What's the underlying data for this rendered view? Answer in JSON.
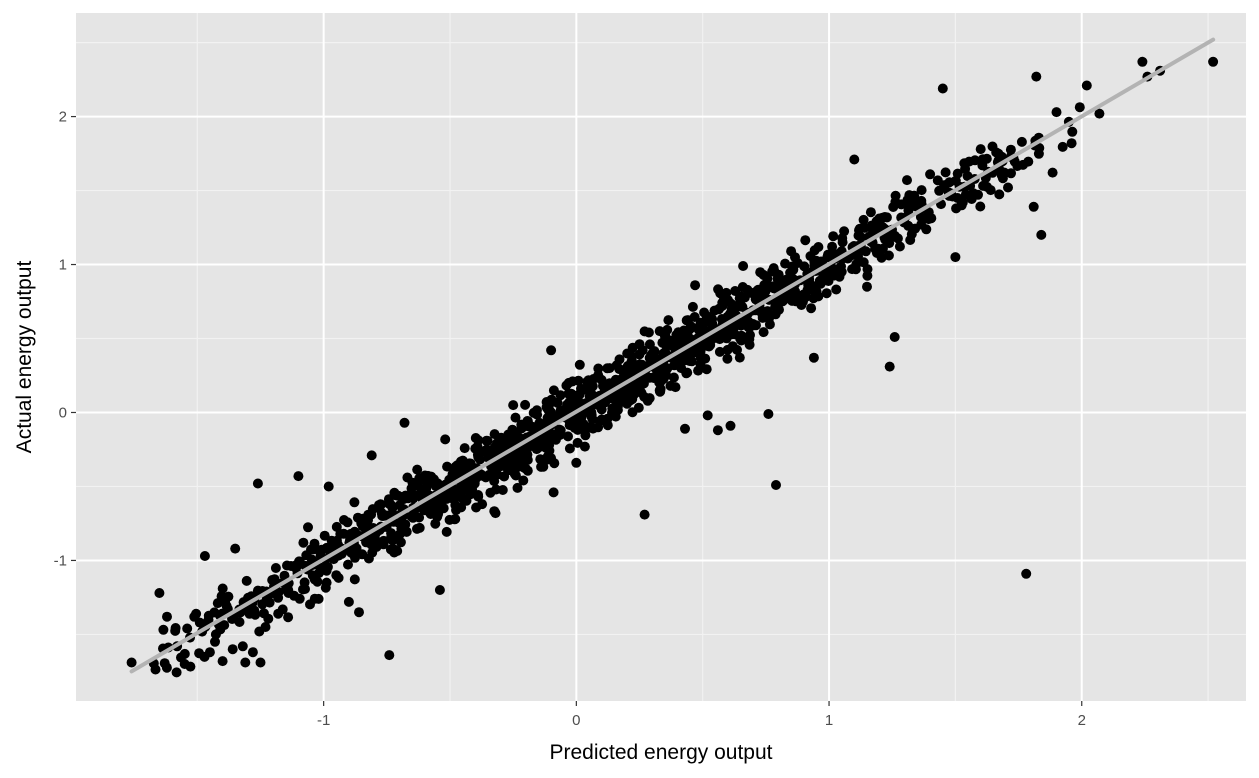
{
  "chart_data": {
    "type": "scatter",
    "title": "",
    "xlabel": "Predicted energy output",
    "ylabel": "Actual energy output",
    "xlim": [
      -1.98,
      2.65
    ],
    "ylim": [
      -1.95,
      2.7
    ],
    "x_ticks": [
      -1,
      0,
      1,
      2
    ],
    "y_ticks": [
      -1,
      0,
      1,
      2
    ],
    "grid": true,
    "legend": "none",
    "colors": {
      "panel_background": "#e5e5e5",
      "grid_major": "#ffffff",
      "grid_minor": "#f2f2f2",
      "points": "#000000",
      "fit_line": "#b3b3b3"
    },
    "fit_line": {
      "x": [
        -1.76,
        2.52
      ],
      "y": [
        -1.75,
        2.52
      ]
    },
    "series": [
      {
        "points": [
          [
            -1.76,
            -1.69
          ],
          [
            -1.65,
            -1.22
          ],
          [
            -1.62,
            -1.38
          ],
          [
            -1.58,
            -1.58
          ],
          [
            -1.55,
            -1.7
          ],
          [
            -1.54,
            -1.46
          ],
          [
            -1.49,
            -1.42
          ],
          [
            -1.47,
            -0.97
          ],
          [
            -1.45,
            -1.62
          ],
          [
            -1.43,
            -1.55
          ],
          [
            -1.4,
            -1.68
          ],
          [
            -1.39,
            -1.28
          ],
          [
            -1.36,
            -1.6
          ],
          [
            -1.35,
            -0.92
          ],
          [
            -1.32,
            -1.58
          ],
          [
            -1.31,
            -1.69
          ],
          [
            -1.28,
            -1.62
          ],
          [
            -1.26,
            -0.48
          ],
          [
            -1.25,
            -1.69
          ],
          [
            -1.23,
            -1.45
          ],
          [
            -1.2,
            -1.22
          ],
          [
            -1.18,
            -1.36
          ],
          [
            -1.1,
            -0.43
          ],
          [
            -1.08,
            -0.88
          ],
          [
            -1.02,
            -1.26
          ],
          [
            -0.98,
            -0.5
          ],
          [
            -0.95,
            -1.1
          ],
          [
            -0.9,
            -1.28
          ],
          [
            -0.86,
            -1.35
          ],
          [
            -0.81,
            -0.29
          ],
          [
            -0.74,
            -1.64
          ],
          [
            -0.68,
            -0.07
          ],
          [
            -0.62,
            -0.78
          ],
          [
            -0.54,
            -1.2
          ],
          [
            -0.45,
            -0.58
          ],
          [
            -0.38,
            -0.42
          ],
          [
            -0.32,
            -0.68
          ],
          [
            -0.25,
            0.05
          ],
          [
            -0.21,
            -0.46
          ],
          [
            -0.16,
            -0.2
          ],
          [
            -0.1,
            0.42
          ],
          [
            -0.09,
            -0.54
          ],
          [
            -0.03,
            0.2
          ],
          [
            0.0,
            -0.34
          ],
          [
            0.06,
            0.06
          ],
          [
            0.1,
            0.22
          ],
          [
            0.15,
            0.15
          ],
          [
            0.22,
            0.35
          ],
          [
            0.27,
            -0.69
          ],
          [
            0.33,
            0.55
          ],
          [
            0.38,
            0.45
          ],
          [
            0.43,
            -0.11
          ],
          [
            0.47,
            0.86
          ],
          [
            0.52,
            -0.02
          ],
          [
            0.56,
            -0.12
          ],
          [
            0.6,
            0.76
          ],
          [
            0.61,
            -0.09
          ],
          [
            0.66,
            0.99
          ],
          [
            0.72,
            0.83
          ],
          [
            0.76,
            -0.01
          ],
          [
            0.79,
            -0.49
          ],
          [
            0.85,
            1.09
          ],
          [
            0.94,
            0.37
          ],
          [
            1.0,
            0.95
          ],
          [
            1.05,
            1.09
          ],
          [
            1.1,
            1.71
          ],
          [
            1.15,
            0.85
          ],
          [
            1.24,
            0.31
          ],
          [
            1.26,
            0.51
          ],
          [
            1.31,
            1.41
          ],
          [
            1.37,
            1.38
          ],
          [
            1.4,
            1.61
          ],
          [
            1.45,
            2.19
          ],
          [
            1.5,
            1.05
          ],
          [
            1.6,
            1.78
          ],
          [
            1.67,
            1.75
          ],
          [
            1.73,
            1.72
          ],
          [
            1.78,
            -1.09
          ],
          [
            1.81,
            1.39
          ],
          [
            1.82,
            2.27
          ],
          [
            1.84,
            1.2
          ],
          [
            1.9,
            2.03
          ],
          [
            1.96,
            1.82
          ],
          [
            2.02,
            2.21
          ],
          [
            2.07,
            2.02
          ],
          [
            2.24,
            2.37
          ],
          [
            2.26,
            2.27
          ],
          [
            2.31,
            2.31
          ],
          [
            2.52,
            2.37
          ]
        ],
        "cloud": {
          "x_range": [
            -1.72,
            2.08
          ],
          "slope": 1.0,
          "intercept": 0.0,
          "spread": 0.15,
          "count": 1300
        }
      }
    ]
  }
}
